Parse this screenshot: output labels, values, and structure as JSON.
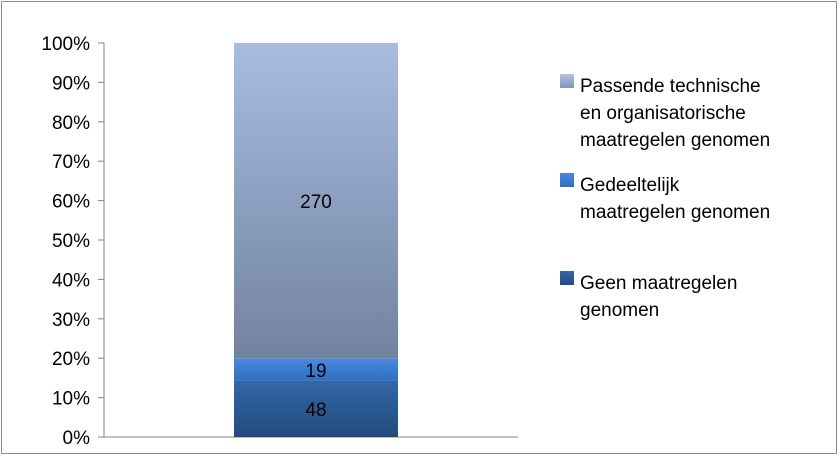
{
  "chart_data": {
    "type": "bar",
    "stacked": "percent",
    "categories": [
      ""
    ],
    "series": [
      {
        "name": "Geen maatregelen genomen",
        "values": [
          48
        ],
        "color": "#2e5a97"
      },
      {
        "name": "Gedeeltelijk maatregelen genomen",
        "values": [
          19
        ],
        "color": "#3f7fd0"
      },
      {
        "name": "Passende technische en organisatorische maatregelen genomen",
        "values": [
          270
        ],
        "color": "#8fa3c8"
      }
    ],
    "data_labels": [
      "48",
      "19",
      "270"
    ],
    "yticks": [
      "0%",
      "10%",
      "20%",
      "30%",
      "40%",
      "50%",
      "60%",
      "70%",
      "80%",
      "90%",
      "100%"
    ],
    "ylim": [
      0,
      100
    ],
    "title": "",
    "xlabel": "",
    "ylabel": "",
    "grid": false,
    "legend_position": "right",
    "legend": [
      {
        "lines": [
          "Passende technische",
          "en organisatorische",
          "maatregelen genomen"
        ]
      },
      {
        "lines": [
          "Gedeeltelijk",
          "maatregelen genomen"
        ]
      },
      {
        "lines": [
          "Geen maatregelen",
          "genomen"
        ]
      }
    ]
  }
}
